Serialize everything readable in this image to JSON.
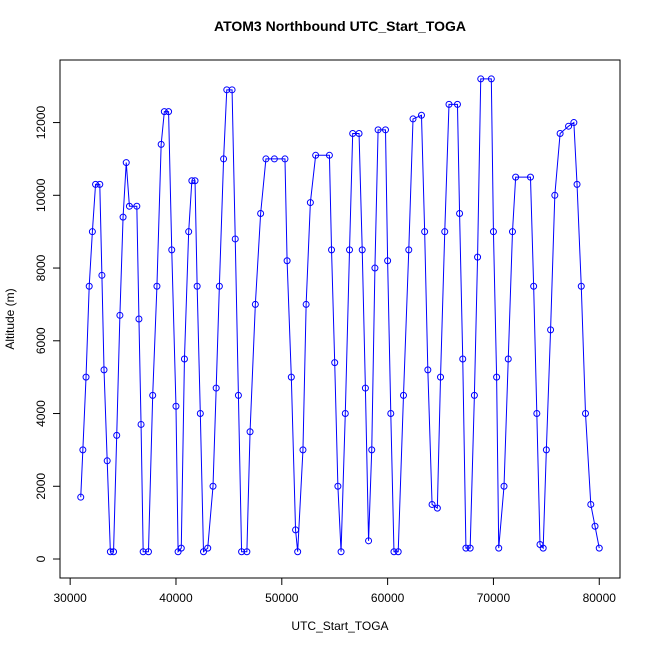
{
  "chart_data": {
    "type": "line",
    "title": "ATOM3 Northbound UTC_Start_TOGA",
    "x_label": "UTC_Start_TOGA",
    "y_label": "Altitude (m)",
    "color": "#0000ff",
    "xlim": [
      29040,
      81960
    ],
    "ylim": [
      -522,
      13720
    ],
    "xticks": [
      30000,
      40000,
      50000,
      60000,
      70000,
      80000
    ],
    "yticks": [
      0,
      2000,
      4000,
      6000,
      8000,
      10000,
      12000
    ],
    "x": [
      31000,
      31200,
      31500,
      31800,
      32100,
      32400,
      32800,
      33000,
      33200,
      33500,
      33800,
      34100,
      34400,
      34700,
      35000,
      35300,
      35600,
      36300,
      36500,
      36700,
      36900,
      37400,
      37800,
      38200,
      38600,
      38900,
      39300,
      39600,
      40000,
      40200,
      40500,
      40800,
      41200,
      41500,
      41800,
      42000,
      42300,
      42600,
      43000,
      43500,
      43800,
      44100,
      44500,
      44800,
      45300,
      45600,
      45900,
      46200,
      46700,
      47000,
      47500,
      48000,
      48500,
      49300,
      50300,
      50500,
      50900,
      51300,
      51500,
      52000,
      52300,
      52700,
      53200,
      54500,
      54700,
      55000,
      55300,
      55600,
      56000,
      56400,
      56700,
      57300,
      57600,
      57900,
      58200,
      58500,
      58800,
      59100,
      59800,
      60000,
      60300,
      60600,
      61000,
      61500,
      62000,
      62400,
      63200,
      63500,
      63800,
      64200,
      64700,
      65000,
      65400,
      65800,
      66600,
      66800,
      67100,
      67400,
      67800,
      68200,
      68500,
      68800,
      69800,
      70000,
      70300,
      70500,
      71000,
      71400,
      71800,
      72100,
      73500,
      73800,
      74100,
      74400,
      74700,
      75000,
      75400,
      75800,
      76300,
      77100,
      77600,
      77900,
      78300,
      78700,
      79200,
      79600,
      80000
    ],
    "y": [
      1700,
      3000,
      5000,
      7500,
      9000,
      10300,
      10300,
      7800,
      5200,
      2700,
      200,
      200,
      3400,
      6700,
      9400,
      10900,
      9700,
      9700,
      6600,
      3700,
      200,
      200,
      4500,
      7500,
      11400,
      12300,
      12300,
      8500,
      4200,
      200,
      300,
      5500,
      9000,
      10400,
      10400,
      7500,
      4000,
      200,
      300,
      2000,
      4700,
      7500,
      11000,
      12900,
      12900,
      8800,
      4500,
      200,
      200,
      3500,
      7000,
      9500,
      11000,
      11000,
      11000,
      8200,
      5000,
      800,
      200,
      3000,
      7000,
      9800,
      11100,
      11100,
      8500,
      5400,
      2000,
      200,
      4000,
      8500,
      11700,
      11700,
      8500,
      4700,
      500,
      3000,
      8000,
      11800,
      11800,
      8200,
      4000,
      200,
      200,
      4500,
      8500,
      12100,
      12200,
      9000,
      5200,
      1500,
      1400,
      5000,
      9000,
      12500,
      12500,
      9500,
      5500,
      300,
      300,
      4500,
      8300,
      13200,
      13200,
      9000,
      5000,
      300,
      2000,
      5500,
      9000,
      10500,
      10500,
      7500,
      4000,
      400,
      300,
      3000,
      6300,
      10000,
      11700,
      11900,
      12000,
      10300,
      7500,
      4000,
      1500,
      900,
      300
    ]
  }
}
